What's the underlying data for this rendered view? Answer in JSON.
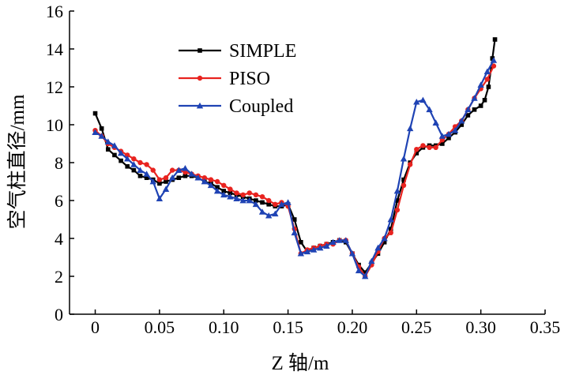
{
  "chart_data": {
    "type": "line",
    "title": "",
    "xlabel": "Z 轴/m",
    "ylabel": "空气柱直径/mm",
    "xlim": [
      -0.02,
      0.35
    ],
    "ylim": [
      0,
      16
    ],
    "xticks": [
      0,
      0.05,
      0.1,
      0.15,
      0.2,
      0.25,
      0.3,
      0.35
    ],
    "xtick_labels": [
      "0",
      "0.05",
      "0.10",
      "0.15",
      "0.20",
      "0.25",
      "0.30",
      "0.35"
    ],
    "yticks": [
      0,
      2,
      4,
      6,
      8,
      10,
      12,
      14,
      16
    ],
    "ytick_labels": [
      "0",
      "2",
      "4",
      "6",
      "8",
      "10",
      "12",
      "14",
      "16"
    ],
    "grid": false,
    "legend_position": "top-left",
    "series": [
      {
        "name": "SIMPLE",
        "color": "#000000",
        "marker": "square",
        "x": [
          0,
          0.005,
          0.01,
          0.015,
          0.02,
          0.025,
          0.03,
          0.035,
          0.04,
          0.045,
          0.05,
          0.055,
          0.06,
          0.065,
          0.07,
          0.075,
          0.08,
          0.085,
          0.09,
          0.095,
          0.1,
          0.105,
          0.11,
          0.115,
          0.12,
          0.125,
          0.13,
          0.135,
          0.14,
          0.145,
          0.15,
          0.155,
          0.16,
          0.165,
          0.17,
          0.175,
          0.18,
          0.185,
          0.19,
          0.195,
          0.2,
          0.205,
          0.21,
          0.215,
          0.22,
          0.225,
          0.23,
          0.235,
          0.24,
          0.245,
          0.25,
          0.255,
          0.26,
          0.265,
          0.27,
          0.275,
          0.28,
          0.285,
          0.29,
          0.295,
          0.3,
          0.303,
          0.306,
          0.309,
          0.311
        ],
        "values": [
          10.6,
          9.8,
          8.7,
          8.4,
          8.1,
          7.8,
          7.6,
          7.3,
          7.2,
          7.1,
          6.9,
          7.0,
          7.1,
          7.2,
          7.3,
          7.3,
          7.2,
          7.0,
          6.9,
          6.7,
          6.5,
          6.4,
          6.3,
          6.2,
          6.1,
          6.0,
          5.9,
          5.8,
          5.7,
          5.7,
          5.8,
          5.0,
          3.8,
          3.3,
          3.5,
          3.6,
          3.7,
          3.8,
          3.9,
          3.8,
          3.2,
          2.6,
          2.2,
          2.7,
          3.2,
          3.8,
          4.5,
          6.0,
          7.1,
          8.0,
          8.5,
          8.8,
          8.9,
          8.9,
          9.0,
          9.3,
          9.6,
          10.0,
          10.5,
          10.8,
          11.0,
          11.3,
          12.0,
          13.5,
          14.5
        ]
      },
      {
        "name": "PISO",
        "color": "#e8231f",
        "marker": "circle",
        "x": [
          0,
          0.005,
          0.01,
          0.015,
          0.02,
          0.025,
          0.03,
          0.035,
          0.04,
          0.045,
          0.05,
          0.055,
          0.06,
          0.065,
          0.07,
          0.075,
          0.08,
          0.085,
          0.09,
          0.095,
          0.1,
          0.105,
          0.11,
          0.115,
          0.12,
          0.125,
          0.13,
          0.135,
          0.14,
          0.145,
          0.15,
          0.155,
          0.16,
          0.165,
          0.17,
          0.175,
          0.18,
          0.185,
          0.19,
          0.195,
          0.2,
          0.205,
          0.21,
          0.215,
          0.22,
          0.225,
          0.23,
          0.235,
          0.24,
          0.245,
          0.25,
          0.255,
          0.26,
          0.265,
          0.27,
          0.275,
          0.28,
          0.285,
          0.29,
          0.295,
          0.3,
          0.305,
          0.31
        ],
        "values": [
          9.7,
          9.4,
          9.0,
          8.8,
          8.6,
          8.4,
          8.2,
          8.0,
          7.9,
          7.6,
          7.1,
          7.2,
          7.6,
          7.6,
          7.5,
          7.4,
          7.3,
          7.2,
          7.1,
          7.0,
          6.8,
          6.6,
          6.4,
          6.3,
          6.4,
          6.3,
          6.2,
          6.0,
          5.8,
          5.9,
          5.7,
          4.5,
          3.2,
          3.4,
          3.5,
          3.6,
          3.7,
          3.7,
          3.9,
          3.9,
          3.2,
          2.5,
          2.0,
          2.6,
          3.3,
          4.0,
          4.3,
          5.5,
          6.8,
          7.9,
          8.7,
          8.9,
          8.8,
          8.8,
          9.2,
          9.5,
          9.9,
          10.2,
          10.8,
          11.4,
          11.9,
          12.4,
          13.1
        ]
      },
      {
        "name": "Coupled",
        "color": "#1f43b4",
        "marker": "triangle",
        "x": [
          0,
          0.005,
          0.01,
          0.015,
          0.02,
          0.025,
          0.03,
          0.035,
          0.04,
          0.045,
          0.05,
          0.055,
          0.06,
          0.065,
          0.07,
          0.075,
          0.08,
          0.085,
          0.09,
          0.095,
          0.1,
          0.105,
          0.11,
          0.115,
          0.12,
          0.125,
          0.13,
          0.135,
          0.14,
          0.145,
          0.15,
          0.155,
          0.16,
          0.165,
          0.17,
          0.175,
          0.18,
          0.185,
          0.19,
          0.195,
          0.2,
          0.205,
          0.21,
          0.215,
          0.22,
          0.225,
          0.23,
          0.235,
          0.24,
          0.245,
          0.25,
          0.255,
          0.26,
          0.265,
          0.27,
          0.275,
          0.28,
          0.285,
          0.29,
          0.295,
          0.3,
          0.305,
          0.31
        ],
        "values": [
          9.6,
          9.4,
          9.1,
          8.9,
          8.5,
          8.2,
          7.9,
          7.6,
          7.4,
          7.0,
          6.1,
          6.6,
          7.2,
          7.6,
          7.7,
          7.4,
          7.2,
          7.0,
          6.8,
          6.5,
          6.3,
          6.2,
          6.1,
          6.0,
          6.0,
          5.8,
          5.4,
          5.2,
          5.3,
          5.8,
          5.9,
          4.3,
          3.2,
          3.3,
          3.4,
          3.5,
          3.6,
          3.8,
          3.9,
          3.9,
          3.2,
          2.3,
          2.0,
          2.8,
          3.5,
          4.0,
          5.0,
          6.5,
          8.2,
          9.8,
          11.2,
          11.3,
          10.8,
          10.1,
          9.4,
          9.5,
          9.7,
          10.2,
          10.8,
          11.4,
          12.1,
          12.8,
          13.4
        ]
      }
    ]
  }
}
